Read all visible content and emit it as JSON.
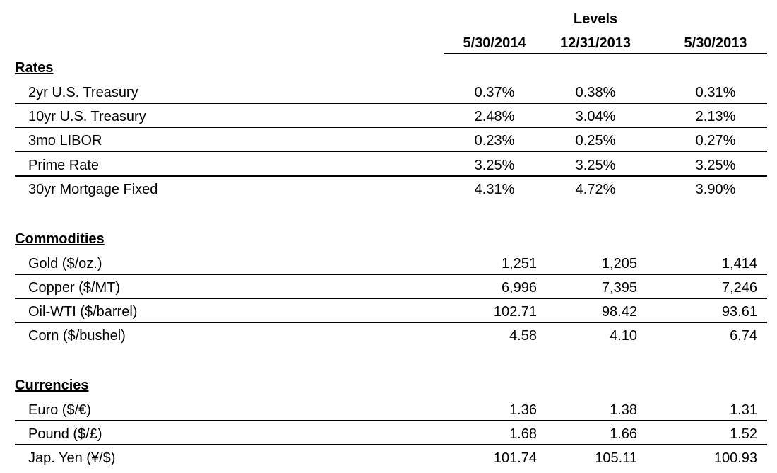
{
  "header": {
    "group_label": "Levels",
    "columns": [
      "5/30/2014",
      "12/31/2013",
      "5/30/2013"
    ]
  },
  "sections": [
    {
      "title": "Rates",
      "rows": [
        {
          "label": "2yr U.S. Treasury",
          "values": [
            "0.37%",
            "0.38%",
            "0.31%"
          ]
        },
        {
          "label": "10yr U.S. Treasury",
          "values": [
            "2.48%",
            "3.04%",
            "2.13%"
          ]
        },
        {
          "label": "3mo LIBOR",
          "values": [
            "0.23%",
            "0.25%",
            "0.27%"
          ]
        },
        {
          "label": "Prime Rate",
          "values": [
            "3.25%",
            "3.25%",
            "3.25%"
          ]
        },
        {
          "label": "30yr Mortgage Fixed",
          "values": [
            "4.31%",
            "4.72%",
            "3.90%"
          ]
        }
      ]
    },
    {
      "title": "Commodities",
      "rows": [
        {
          "label": "Gold ($/oz.)",
          "values": [
            "1,251",
            "1,205",
            "1,414"
          ]
        },
        {
          "label": "Copper ($/MT)",
          "values": [
            "6,996",
            "7,395",
            "7,246"
          ]
        },
        {
          "label": "Oil-WTI ($/barrel)",
          "values": [
            "102.71",
            "98.42",
            "93.61"
          ]
        },
        {
          "label": "Corn ($/bushel)",
          "values": [
            "4.58",
            "4.10",
            "6.74"
          ]
        }
      ]
    },
    {
      "title": "Currencies",
      "rows": [
        {
          "label": "Euro ($/€)",
          "values": [
            "1.36",
            "1.38",
            "1.31"
          ]
        },
        {
          "label": "Pound ($/£)",
          "values": [
            "1.68",
            "1.66",
            "1.52"
          ]
        },
        {
          "label": "Jap. Yen (¥/$)",
          "values": [
            "101.74",
            "105.11",
            "100.93"
          ]
        }
      ]
    }
  ]
}
